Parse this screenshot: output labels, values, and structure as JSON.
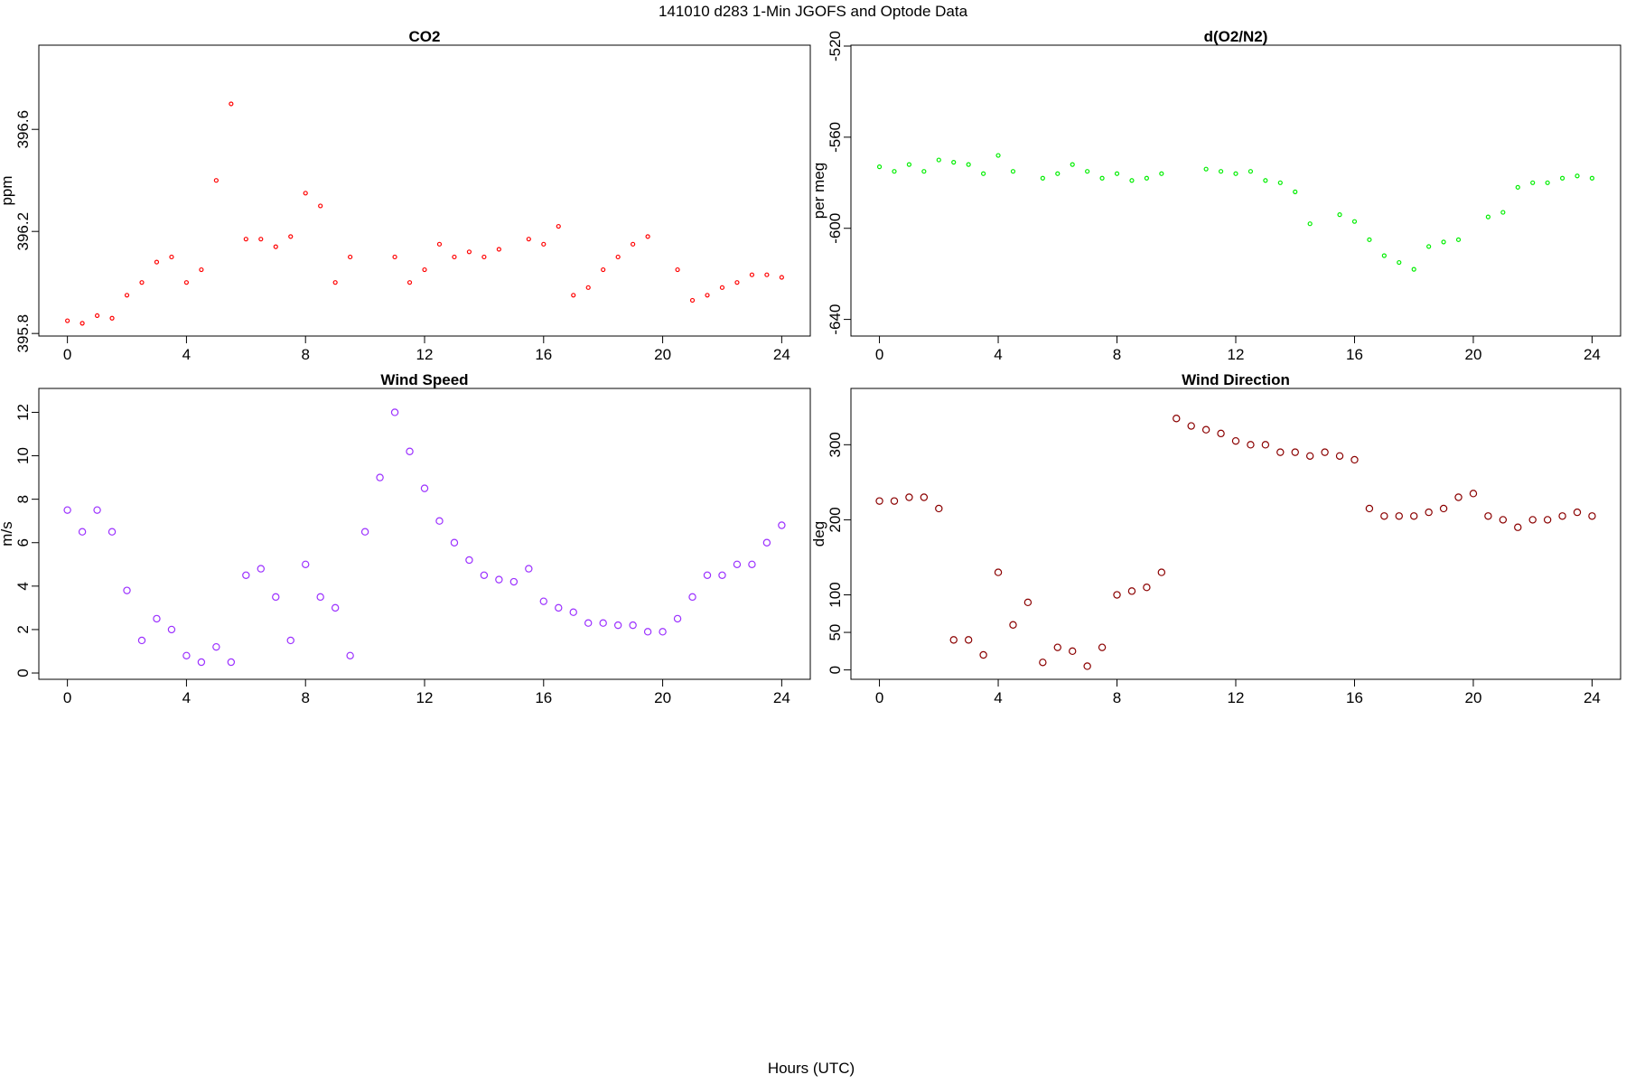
{
  "title": "141010   d283   1-Min  JGOFS and Optode Data",
  "xlabel": "Hours (UTC)",
  "chart_data": [
    {
      "type": "scatter",
      "title": "CO2",
      "ylabel": "ppm",
      "color": "#ff0000",
      "x": [
        0,
        0.5,
        1,
        1.5,
        2,
        2.5,
        3,
        3.5,
        4,
        4.5,
        5,
        5.5,
        6,
        6.5,
        7,
        7.5,
        8,
        8.5,
        9,
        9.5,
        10,
        10.5,
        11,
        11.5,
        12,
        12.5,
        13,
        13.5,
        14,
        14.5,
        15,
        15.5,
        16,
        16.5,
        17,
        17.5,
        18,
        18.5,
        19,
        19.5,
        20,
        20.5,
        21,
        21.5,
        22,
        22.5,
        23,
        23.5,
        24
      ],
      "values": [
        395.85,
        395.84,
        395.87,
        395.86,
        395.95,
        396.0,
        396.08,
        396.1,
        396.0,
        396.05,
        396.4,
        396.7,
        396.17,
        396.17,
        396.14,
        396.18,
        396.35,
        396.3,
        396.0,
        396.1,
        null,
        null,
        396.1,
        396.0,
        396.05,
        396.15,
        396.1,
        396.12,
        396.1,
        396.13,
        null,
        396.17,
        396.15,
        396.22,
        395.95,
        395.98,
        396.05,
        396.1,
        396.15,
        396.18,
        null,
        396.05,
        395.93,
        395.95,
        395.98,
        396.0,
        396.03,
        396.03,
        396.02
      ],
      "xlim": [
        -0.96,
        24.96
      ],
      "xticks": [
        0,
        4,
        8,
        12,
        16,
        20,
        24
      ],
      "ylim": [
        395.79,
        396.93
      ],
      "yticks": [
        395.8,
        396.2,
        396.6
      ]
    },
    {
      "type": "scatter",
      "title": "d(O2/N2)",
      "ylabel": "per meg",
      "color": "#00ee00",
      "x": [
        0,
        0.5,
        1,
        1.5,
        2,
        2.5,
        3,
        3.5,
        4,
        4.5,
        5,
        5.5,
        6,
        6.5,
        7,
        7.5,
        8,
        8.5,
        9,
        9.5,
        10,
        10.5,
        11,
        11.5,
        12,
        12.5,
        13,
        13.5,
        14,
        14.5,
        15,
        15.5,
        16,
        16.5,
        17,
        17.5,
        18,
        18.5,
        19,
        19.5,
        20,
        20.5,
        21,
        21.5,
        22,
        22.5,
        23,
        23.5,
        24
      ],
      "values": [
        -573,
        -575,
        -572,
        -575,
        -570,
        -571,
        -572,
        -576,
        -568,
        -575,
        null,
        -578,
        -576,
        -572,
        -575,
        -578,
        -576,
        -579,
        -578,
        -576,
        null,
        null,
        -574,
        -575,
        -576,
        -575,
        -579,
        -580,
        -584,
        -598,
        null,
        -594,
        -597,
        -605,
        -612,
        -615,
        -618,
        -608,
        -606,
        -605,
        null,
        -595,
        -593,
        -582,
        -580,
        -580,
        -578,
        -577,
        -578
      ],
      "xlim": [
        -0.96,
        24.96
      ],
      "xticks": [
        0,
        4,
        8,
        12,
        16,
        20,
        24
      ],
      "ylim": [
        -647.3,
        -519.6
      ],
      "yticks": [
        -640,
        -600,
        -560,
        -520
      ]
    },
    {
      "type": "scatter",
      "title": "Wind Speed",
      "ylabel": "m/s",
      "color": "#9b30ff",
      "x": [
        0,
        0.5,
        1,
        1.5,
        2,
        2.5,
        3,
        3.5,
        4,
        4.5,
        5,
        5.5,
        6,
        6.5,
        7,
        7.5,
        8,
        8.5,
        9,
        9.5,
        10,
        10.5,
        11,
        11.5,
        12,
        12.5,
        13,
        13.5,
        14,
        14.5,
        15,
        15.5,
        16,
        16.5,
        17,
        17.5,
        18,
        18.5,
        19,
        19.5,
        20,
        20.5,
        21,
        21.5,
        22,
        22.5,
        23,
        23.5,
        24
      ],
      "values": [
        7.5,
        6.5,
        7.5,
        6.5,
        3.8,
        1.5,
        2.5,
        2.0,
        0.8,
        0.5,
        1.2,
        0.5,
        4.5,
        4.8,
        3.5,
        1.5,
        5.0,
        3.5,
        3.0,
        0.8,
        6.5,
        9.0,
        12.0,
        10.2,
        8.5,
        7.0,
        6.0,
        5.2,
        4.5,
        4.3,
        4.2,
        4.8,
        3.3,
        3.0,
        2.8,
        2.3,
        2.3,
        2.2,
        2.2,
        1.9,
        1.9,
        2.5,
        3.5,
        4.5,
        4.5,
        5.0,
        5.0,
        6.0,
        6.8
      ],
      "xlim": [
        -0.96,
        24.96
      ],
      "xticks": [
        0,
        4,
        8,
        12,
        16,
        20,
        24
      ],
      "ylim": [
        -0.29,
        13.1
      ],
      "yticks": [
        0,
        2,
        4,
        6,
        8,
        10,
        12
      ]
    },
    {
      "type": "scatter",
      "title": "Wind Direction",
      "ylabel": "deg",
      "color": "#8b0000",
      "x": [
        0,
        0.5,
        1,
        1.5,
        2,
        2.5,
        3,
        3.5,
        4,
        4.5,
        5,
        5.5,
        6,
        6.5,
        7,
        7.5,
        8,
        8.5,
        9,
        9.5,
        10,
        10.5,
        11,
        11.5,
        12,
        12.5,
        13,
        13.5,
        14,
        14.5,
        15,
        15.5,
        16,
        16.5,
        17,
        17.5,
        18,
        18.5,
        19,
        19.5,
        20,
        20.5,
        21,
        21.5,
        22,
        22.5,
        23,
        23.5,
        24
      ],
      "values": [
        225,
        225,
        230,
        230,
        215,
        40,
        40,
        20,
        130,
        60,
        90,
        10,
        30,
        25,
        5,
        30,
        100,
        105,
        110,
        130,
        335,
        325,
        320,
        315,
        305,
        300,
        300,
        290,
        290,
        285,
        290,
        285,
        280,
        215,
        205,
        205,
        205,
        210,
        215,
        230,
        235,
        205,
        200,
        190,
        200,
        200,
        205,
        210,
        205
      ],
      "xlim": [
        -0.96,
        24.96
      ],
      "xticks": [
        0,
        4,
        8,
        12,
        16,
        20,
        24
      ],
      "ylim": [
        -12.5,
        375
      ],
      "yticks": [
        0,
        50,
        100,
        200,
        300
      ]
    }
  ]
}
